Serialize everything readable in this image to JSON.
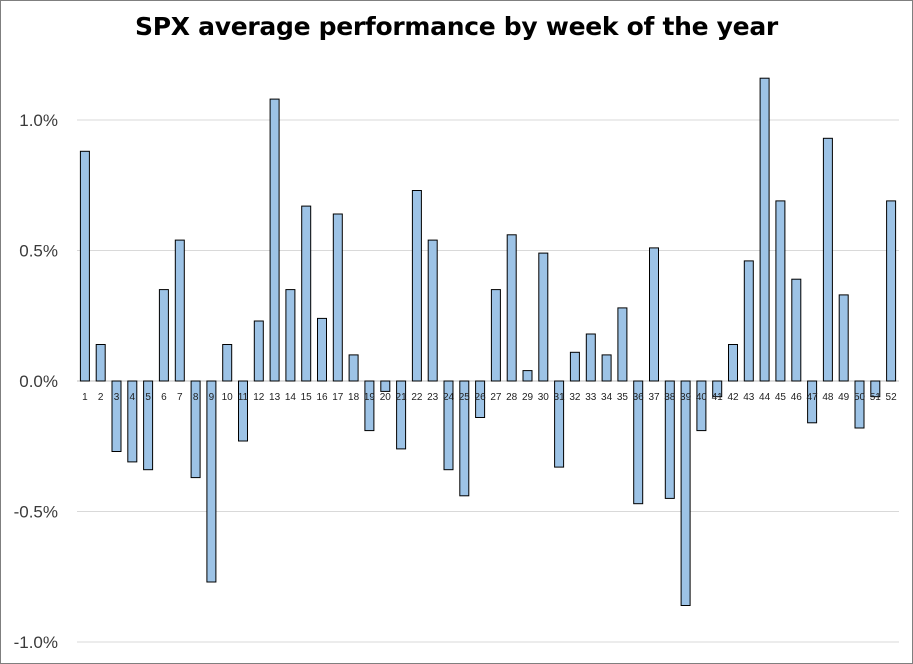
{
  "chart_data": {
    "type": "bar",
    "title": "SPX average performance by week of the year",
    "xlabel": "",
    "ylabel": "",
    "ylim": [
      -1.0,
      1.2
    ],
    "yticks": [
      {
        "value": 1.0,
        "label": "1.0%"
      },
      {
        "value": 0.5,
        "label": "0.5%"
      },
      {
        "value": 0.0,
        "label": "0.0%"
      },
      {
        "value": -0.5,
        "label": "-0.5%"
      },
      {
        "value": -1.0,
        "label": "-1.0%"
      }
    ],
    "grid": true,
    "legend": "none",
    "bar_color": "#9dc3e6",
    "bar_edge_color": "#000000",
    "grid_color": "#d9d9d9",
    "categories": [
      "1",
      "2",
      "3",
      "4",
      "5",
      "6",
      "7",
      "8",
      "9",
      "10",
      "11",
      "12",
      "13",
      "14",
      "15",
      "16",
      "17",
      "18",
      "19",
      "20",
      "21",
      "22",
      "23",
      "24",
      "25",
      "26",
      "27",
      "28",
      "29",
      "30",
      "31",
      "32",
      "33",
      "34",
      "35",
      "36",
      "37",
      "38",
      "39",
      "40",
      "41",
      "42",
      "43",
      "44",
      "45",
      "46",
      "47",
      "48",
      "49",
      "50",
      "51",
      "52"
    ],
    "values": [
      0.88,
      0.14,
      -0.27,
      -0.31,
      -0.34,
      0.35,
      0.54,
      -0.37,
      -0.77,
      0.14,
      -0.23,
      0.23,
      1.08,
      0.35,
      0.67,
      0.24,
      0.64,
      0.1,
      -0.19,
      -0.04,
      -0.26,
      0.73,
      0.54,
      -0.34,
      -0.44,
      -0.14,
      0.35,
      0.56,
      0.04,
      0.49,
      -0.33,
      0.11,
      0.18,
      0.1,
      0.28,
      -0.47,
      0.51,
      -0.45,
      -0.86,
      -0.19,
      -0.06,
      0.14,
      0.46,
      1.16,
      0.69,
      0.39,
      -0.16,
      0.93,
      0.33,
      -0.18,
      -0.06,
      0.69
    ]
  }
}
